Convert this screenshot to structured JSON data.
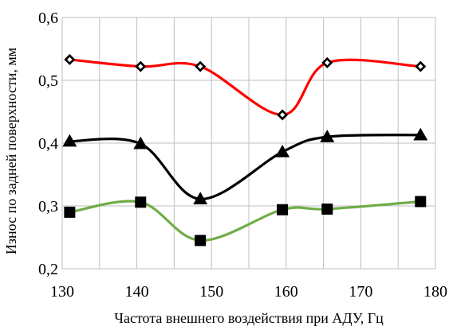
{
  "chart_data": {
    "type": "line",
    "xlabel": "Частота внешнего воздействия при АДУ, Гц",
    "ylabel": "Износ по задней поверхности,  мм",
    "xlim": [
      130,
      180
    ],
    "ylim": [
      0.2,
      0.6
    ],
    "x_ticks": [
      "130",
      "140",
      "150",
      "160",
      "170",
      "180"
    ],
    "y_ticks": [
      "0,2",
      "0,3",
      "0,4",
      "0,5",
      "0,6"
    ],
    "grid": true,
    "legend": "none",
    "series": [
      {
        "color": "#ff0000",
        "marker": "diamond",
        "x": [
          131,
          140.5,
          148.5,
          159.5,
          165.5,
          178
        ],
        "y": [
          0.533,
          0.522,
          0.522,
          0.445,
          0.528,
          0.522
        ]
      },
      {
        "color": "#000000",
        "marker": "triangle",
        "x": [
          131,
          140.5,
          148.5,
          159.5,
          165.5,
          178
        ],
        "y": [
          0.403,
          0.399,
          0.311,
          0.386,
          0.41,
          0.413
        ]
      },
      {
        "color": "#70ad47",
        "marker": "square",
        "x": [
          131,
          140.5,
          148.5,
          159.5,
          165.5,
          178
        ],
        "y": [
          0.29,
          0.306,
          0.245,
          0.294,
          0.295,
          0.307
        ]
      }
    ]
  }
}
